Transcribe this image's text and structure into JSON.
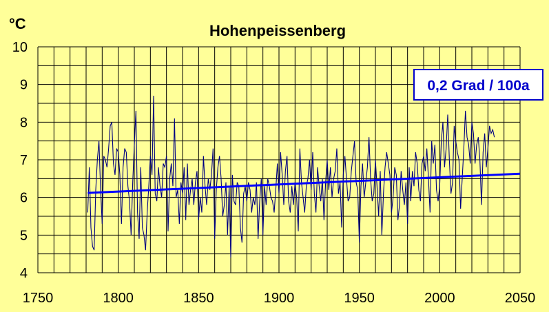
{
  "chart_data": {
    "type": "line",
    "title": "Hohenpeissenberg",
    "unit_label": "°C",
    "xlabel": "",
    "ylabel": "",
    "xlim": [
      1750,
      2050
    ],
    "ylim": [
      4,
      10
    ],
    "x_ticks": [
      1750,
      1800,
      1850,
      1900,
      1950,
      2000,
      2050
    ],
    "y_ticks": [
      4,
      5,
      6,
      7,
      8,
      9,
      10
    ],
    "grid": true,
    "minor_grid_step_x": 10,
    "minor_grid_step_y": 0.5,
    "annotation": "0,2 Grad / 100a",
    "colors": {
      "background": "#ffff99",
      "grid": "#000000",
      "series": "#000080",
      "trend": "#0000ff",
      "annotation": "#0000cc"
    },
    "series": [
      {
        "x_start": 1781,
        "x_step": 1,
        "values": [
          5.6,
          6.8,
          5.2,
          4.7,
          4.6,
          6.2,
          7.0,
          7.5,
          6.2,
          5.3,
          7.1,
          7.0,
          6.8,
          7.3,
          7.9,
          8.0,
          6.9,
          6.6,
          7.3,
          7.2,
          6.6,
          5.3,
          6.8,
          7.3,
          7.2,
          6.3,
          5.9,
          5.0,
          6.4,
          7.4,
          8.3,
          5.6,
          4.9,
          6.8,
          5.2,
          5.0,
          4.6,
          5.6,
          6.3,
          7.1,
          6.6,
          8.7,
          6.1,
          5.9,
          6.8,
          6.3,
          6.0,
          6.9,
          6.8,
          7.1,
          5.1,
          6.5,
          6.9,
          6.3,
          8.1,
          6.0,
          6.2,
          5.3,
          6.4,
          6.1,
          6.8,
          5.4,
          6.9,
          5.8,
          6.2,
          6.5,
          5.8,
          6.4,
          6.7,
          5.4,
          6.0,
          5.6,
          7.1,
          6.3,
          5.8,
          6.5,
          6.2,
          6.6,
          7.3,
          4.9,
          6.2,
          6.8,
          7.1,
          6.5,
          5.5,
          5.8,
          6.4,
          5.0,
          6.3,
          4.4,
          6.6,
          5.9,
          5.8,
          6.4,
          6.3,
          5.2,
          4.8,
          6.1,
          6.3,
          5.9,
          6.4,
          6.2,
          5.6,
          6.0,
          5.8,
          6.4,
          4.9,
          5.9,
          6.5,
          5.0,
          6.3,
          5.8,
          6.5,
          6.3,
          6.0,
          5.9,
          5.6,
          6.2,
          6.9,
          6.1,
          7.2,
          6.6,
          5.8,
          6.7,
          7.1,
          5.9,
          5.6,
          6.3,
          5.8,
          6.4,
          6.0,
          5.1,
          7.3,
          6.4,
          6.0,
          5.6,
          6.3,
          6.5,
          7.0,
          6.2,
          7.2,
          6.1,
          5.6,
          6.8,
          6.3,
          5.9,
          6.5,
          5.4,
          6.4,
          7.0,
          6.2,
          6.8,
          6.0,
          6.5,
          6.7,
          7.3,
          6.1,
          6.4,
          5.2,
          6.6,
          7.1,
          6.5,
          5.9,
          6.0,
          6.7,
          7.1,
          7.5,
          6.4,
          6.2,
          4.8,
          6.3,
          6.9,
          6.0,
          6.4,
          6.8,
          7.6,
          6.5,
          5.9,
          6.1,
          7.0,
          6.3,
          5.5,
          6.7,
          5.0,
          6.1,
          6.8,
          7.2,
          6.9,
          6.6,
          5.6,
          6.0,
          6.8,
          6.6,
          5.4,
          5.8,
          6.7,
          6.2,
          5.8,
          6.4,
          5.3,
          6.8,
          5.9,
          6.7,
          6.3,
          7.2,
          6.9,
          6.2,
          5.9,
          6.9,
          7.1,
          6.7,
          7.3,
          6.5,
          5.6,
          7.5,
          6.9,
          7.4,
          6.2,
          5.9,
          6.3,
          7.5,
          8.0,
          6.8,
          7.3,
          8.2,
          7.0,
          6.1,
          6.4,
          7.9,
          7.5,
          7.2,
          7.0,
          5.7,
          6.5,
          7.3,
          8.3,
          7.6,
          7.4,
          6.9,
          8.0,
          7.7,
          6.9,
          7.4,
          7.6,
          7.0,
          5.8,
          7.2,
          7.7,
          6.8,
          7.3,
          7.9,
          7.7,
          7.8,
          7.6
        ]
      }
    ],
    "trend": {
      "x0": 1781,
      "y0": 6.12,
      "x1": 2050,
      "y1": 6.63
    }
  }
}
